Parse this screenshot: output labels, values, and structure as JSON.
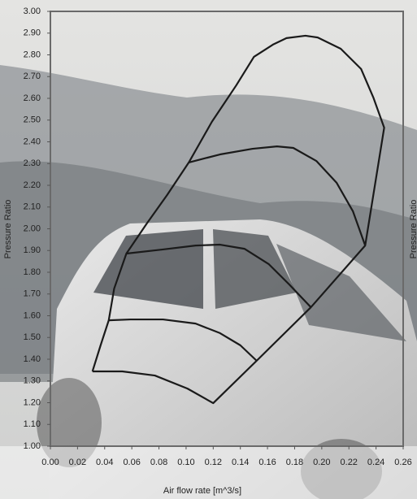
{
  "chart_data": {
    "type": "line",
    "xlabel": "Air flow rate [m^3/s]",
    "ylabel": "Pressure Ratio",
    "y2label": "Pressure Ratio",
    "xlim": [
      0,
      0.26
    ],
    "ylim": [
      1,
      3
    ],
    "grid": false,
    "color": "#1a1a1a",
    "xticks": [
      {
        "value": 0,
        "label": "0.00"
      },
      {
        "value": 0.02,
        "label": "0.02"
      },
      {
        "value": 0.04,
        "label": "0.04"
      },
      {
        "value": 0.06,
        "label": "0.06"
      },
      {
        "value": 0.08,
        "label": "0.08"
      },
      {
        "value": 0.1,
        "label": "0.10"
      },
      {
        "value": 0.12,
        "label": "0.12"
      },
      {
        "value": 0.14,
        "label": "0.14"
      },
      {
        "value": 0.16,
        "label": "0.16"
      },
      {
        "value": 0.18,
        "label": "0.18"
      },
      {
        "value": 0.2,
        "label": "0.20"
      },
      {
        "value": 0.22,
        "label": "0.22"
      },
      {
        "value": 0.24,
        "label": "0.24"
      },
      {
        "value": 0.26,
        "label": "0.26"
      }
    ],
    "yticks": [
      {
        "value": 1,
        "label": "1.00"
      },
      {
        "value": 1.1,
        "label": "1.10"
      },
      {
        "value": 1.2,
        "label": "1.20"
      },
      {
        "value": 1.3,
        "label": "1.30"
      },
      {
        "value": 1.4,
        "label": "1.40"
      },
      {
        "value": 1.5,
        "label": "1.50"
      },
      {
        "value": 1.6,
        "label": "1.60"
      },
      {
        "value": 1.7,
        "label": "1.70"
      },
      {
        "value": 1.8,
        "label": "1.80"
      },
      {
        "value": 1.9,
        "label": "1.90"
      },
      {
        "value": 2,
        "label": "2.00"
      },
      {
        "value": 2.1,
        "label": "2.10"
      },
      {
        "value": 2.2,
        "label": "2.20"
      },
      {
        "value": 2.3,
        "label": "2.30"
      },
      {
        "value": 2.4,
        "label": "2.40"
      },
      {
        "value": 2.5,
        "label": "2.50"
      },
      {
        "value": 2.6,
        "label": "2.60"
      },
      {
        "value": 2.7,
        "label": "2.70"
      },
      {
        "value": 2.8,
        "label": "2.80"
      },
      {
        "value": 2.9,
        "label": "2.90"
      },
      {
        "value": 3,
        "label": "3.00"
      }
    ],
    "series": [
      {
        "x": [
          0.031,
          0.037,
          0.043,
          0.047,
          0.056,
          0.071,
          0.086,
          0.102,
          0.119,
          0.137,
          0.15,
          0.164,
          0.174,
          0.188,
          0.197,
          0.214,
          0.229,
          0.238,
          0.246,
          0.232,
          0.192,
          0.152,
          0.12,
          0.101,
          0.077,
          0.053,
          0.031
        ],
        "values": [
          1.344,
          1.464,
          1.579,
          1.725,
          1.886,
          2.024,
          2.155,
          2.305,
          2.492,
          2.66,
          2.791,
          2.847,
          2.877,
          2.888,
          2.88,
          2.828,
          2.735,
          2.604,
          2.465,
          1.923,
          1.639,
          1.393,
          1.198,
          1.265,
          1.325,
          1.344,
          1.344
        ]
      },
      {
        "x": [
          0.102,
          0.125,
          0.149,
          0.167,
          0.179,
          0.196,
          0.211,
          0.223,
          0.232
        ],
        "values": [
          2.305,
          2.342,
          2.368,
          2.379,
          2.372,
          2.312,
          2.211,
          2.08,
          1.923
        ]
      },
      {
        "x": [
          0.056,
          0.083,
          0.107,
          0.125,
          0.143,
          0.161,
          0.176,
          0.192
        ],
        "values": [
          1.886,
          1.905,
          1.923,
          1.927,
          1.908,
          1.837,
          1.744,
          1.639
        ]
      },
      {
        "x": [
          0.043,
          0.059,
          0.083,
          0.107,
          0.125,
          0.14,
          0.152
        ],
        "values": [
          1.579,
          1.583,
          1.583,
          1.564,
          1.52,
          1.464,
          1.393
        ]
      }
    ]
  }
}
